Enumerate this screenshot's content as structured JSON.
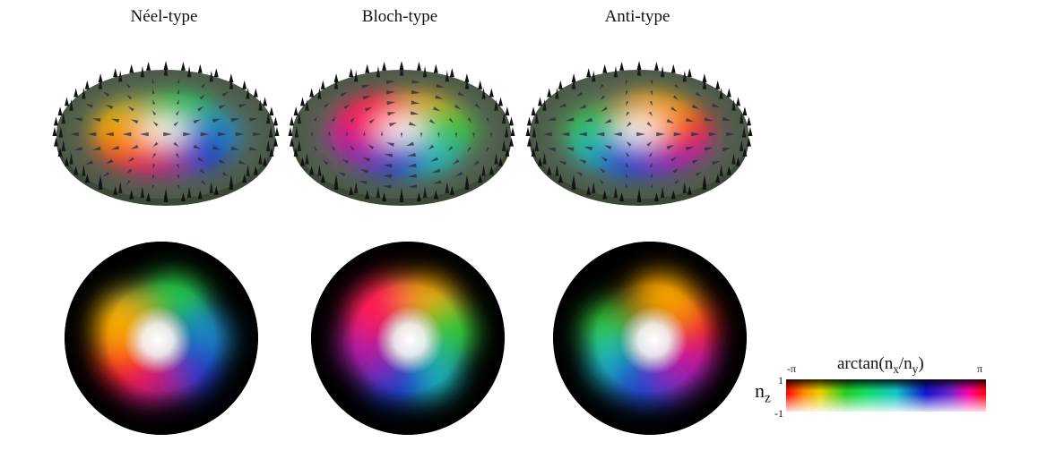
{
  "panels": [
    {
      "title": "Néel-type"
    },
    {
      "title": "Bloch-type"
    },
    {
      "title": "Anti-type"
    }
  ],
  "legend": {
    "title": "arctan(n",
    "title_sub_x": "x",
    "title_mid": "/n",
    "title_sub_y": "y",
    "title_end": ")",
    "tick_left": "-π",
    "tick_right": "π",
    "nz": "n",
    "nz_sub": "z",
    "nz_top": "1",
    "nz_bottom": "-1"
  }
}
